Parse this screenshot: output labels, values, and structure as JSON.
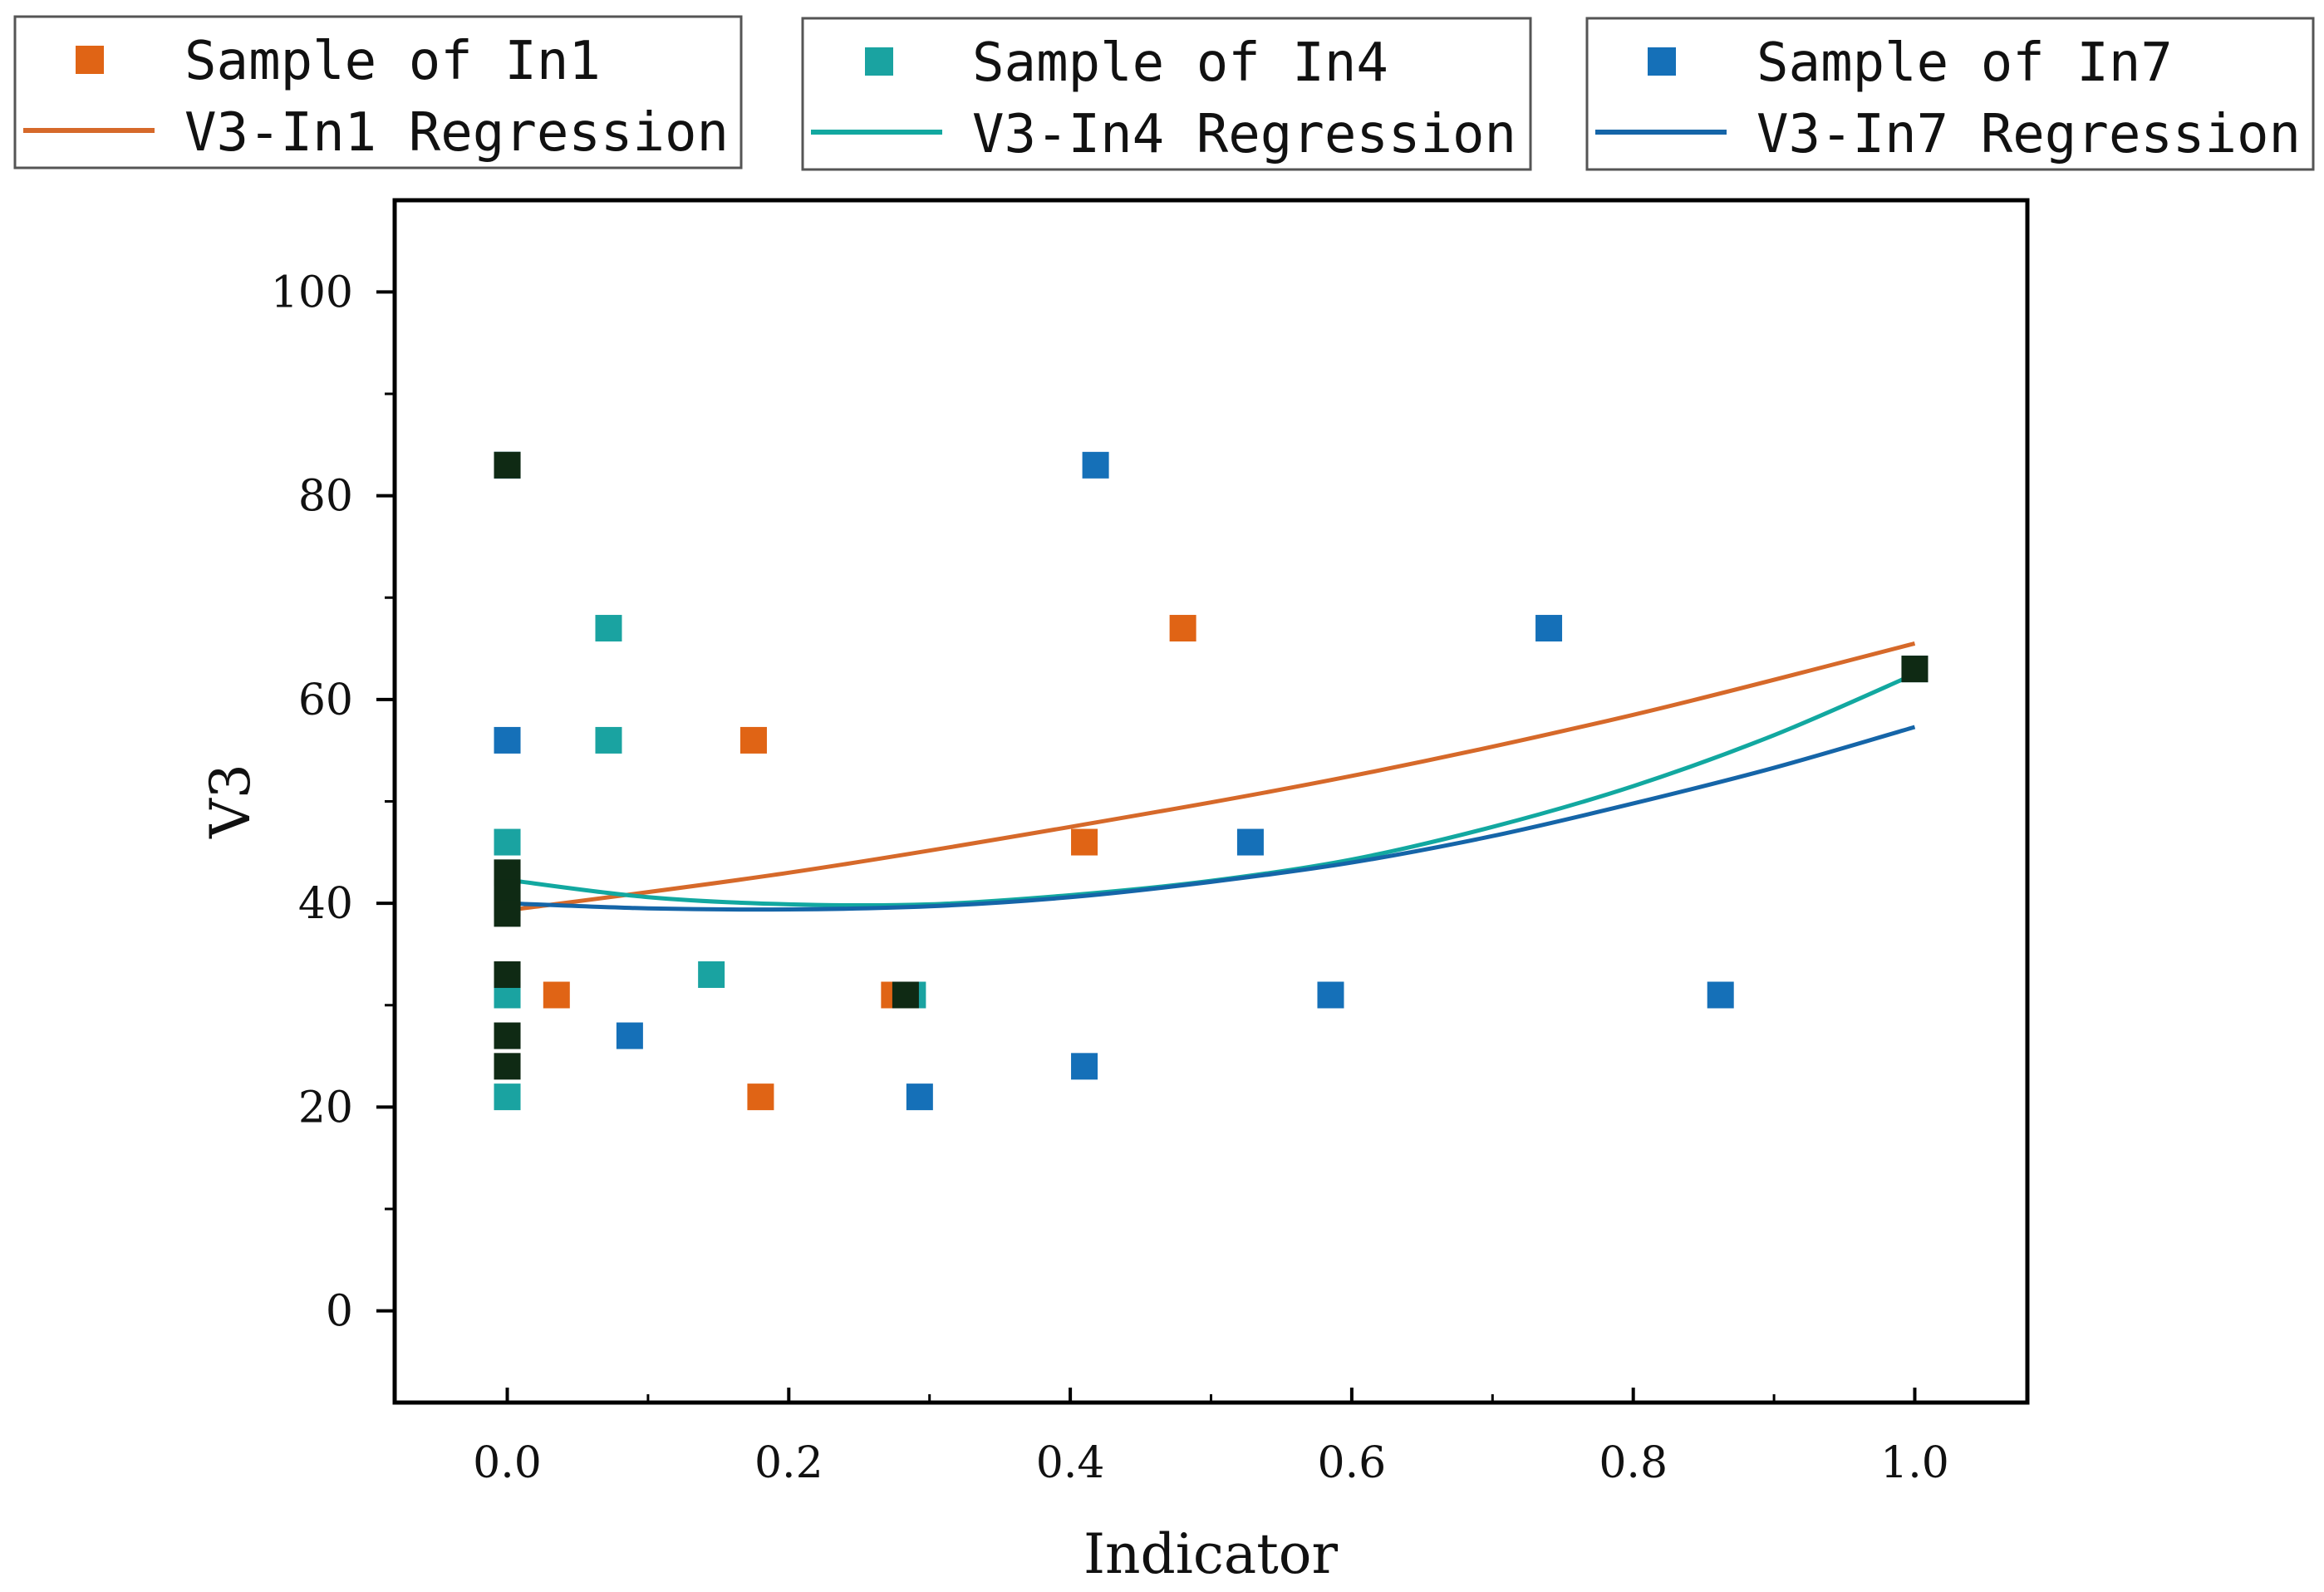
{
  "chart_data": {
    "type": "scatter",
    "title": "",
    "xlabel": "Indicator",
    "ylabel": "V3",
    "xlim": [
      -0.08,
      1.08
    ],
    "ylim": [
      -9,
      109
    ],
    "xticks": [
      "0.0",
      "0.2",
      "0.4",
      "0.6",
      "0.8",
      "1.0"
    ],
    "xtick_values": [
      0,
      0.2,
      0.4,
      0.6,
      0.8,
      1.0
    ],
    "yticks": [
      "0",
      "20",
      "40",
      "60",
      "80",
      "100"
    ],
    "ytick_values": [
      0,
      20,
      40,
      60,
      80,
      100
    ],
    "overlap_color": "#0f2a14",
    "series": [
      {
        "name": "Sample of In1",
        "regression_name": "V3-In1 Regression",
        "color": "#e06415",
        "line_color": "#d6692a",
        "points": [
          {
            "x": 0.0,
            "y": 83
          },
          {
            "x": 0.0,
            "y": 40
          },
          {
            "x": 0.035,
            "y": 31
          },
          {
            "x": 0.175,
            "y": 56
          },
          {
            "x": 0.18,
            "y": 21
          },
          {
            "x": 0.275,
            "y": 31
          },
          {
            "x": 0.41,
            "y": 46
          },
          {
            "x": 0.48,
            "y": 67
          },
          {
            "x": 1.0,
            "y": 63
          }
        ],
        "regression": {
          "x": [
            0,
            0.2,
            0.4,
            0.6,
            0.8,
            1.0
          ],
          "y": [
            39.3,
            43.0,
            47.5,
            52.5,
            58.5,
            65.5
          ]
        }
      },
      {
        "name": "Sample of In4",
        "regression_name": "V3-In4 Regression",
        "color": "#1aa3a1",
        "line_color": "#12a8a0",
        "points": [
          {
            "x": 0.0,
            "y": 46
          },
          {
            "x": 0.0,
            "y": 31
          },
          {
            "x": 0.0,
            "y": 21
          },
          {
            "x": 0.0,
            "y": 83
          },
          {
            "x": 0.0,
            "y": 40
          },
          {
            "x": 0.072,
            "y": 67
          },
          {
            "x": 0.072,
            "y": 56
          },
          {
            "x": 0.145,
            "y": 33
          },
          {
            "x": 0.288,
            "y": 31
          },
          {
            "x": 1.0,
            "y": 63
          }
        ],
        "regression": {
          "x": [
            0,
            0.1,
            0.2,
            0.3,
            0.4,
            0.5,
            0.6,
            0.7,
            0.8,
            0.9,
            1.0
          ],
          "y": [
            42.3,
            40.6,
            39.9,
            39.9,
            40.8,
            42.2,
            44.3,
            47.5,
            51.5,
            56.5,
            62.5
          ]
        }
      },
      {
        "name": "Sample of In7",
        "regression_name": "V3-In7 Regression",
        "color": "#1570b8",
        "line_color": "#1565a8",
        "points": [
          {
            "x": 0.0,
            "y": 56
          },
          {
            "x": 0.0,
            "y": 83
          },
          {
            "x": 0.0,
            "y": 40
          },
          {
            "x": 0.087,
            "y": 27
          },
          {
            "x": 0.293,
            "y": 21
          },
          {
            "x": 0.41,
            "y": 24
          },
          {
            "x": 0.418,
            "y": 83
          },
          {
            "x": 0.528,
            "y": 46
          },
          {
            "x": 0.585,
            "y": 31
          },
          {
            "x": 0.74,
            "y": 67
          },
          {
            "x": 0.862,
            "y": 31
          },
          {
            "x": 1.0,
            "y": 63
          }
        ],
        "regression": {
          "x": [
            0,
            0.1,
            0.2,
            0.3,
            0.4,
            0.5,
            0.6,
            0.7,
            0.8,
            0.9,
            1.0
          ],
          "y": [
            40.0,
            39.5,
            39.4,
            39.7,
            40.6,
            42.1,
            44.0,
            46.6,
            49.8,
            53.3,
            57.3
          ]
        }
      }
    ],
    "overlap_points": [
      {
        "x": 0.0,
        "y": 83
      },
      {
        "x": 0.0,
        "y": 43
      },
      {
        "x": 0.0,
        "y": 41
      },
      {
        "x": 0.0,
        "y": 39
      },
      {
        "x": 0.0,
        "y": 33
      },
      {
        "x": 0.0,
        "y": 27
      },
      {
        "x": 0.0,
        "y": 24
      },
      {
        "x": 0.283,
        "y": 31
      },
      {
        "x": 1.0,
        "y": 63
      }
    ]
  }
}
